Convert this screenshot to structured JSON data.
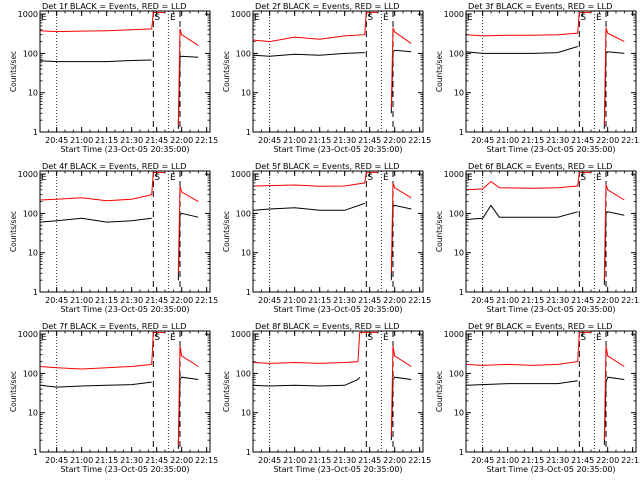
{
  "figure": {
    "ylabel": "Counts/sec",
    "xlabel": "Start Time (23-Oct-05 20:35:00)",
    "x_tick_labels": [
      "20:45",
      "21:00",
      "21:15",
      "21:30",
      "21:45",
      "22:00",
      "22:15"
    ],
    "y_tick_labels": [
      "1",
      "10",
      "100",
      "1000"
    ],
    "marker_S": "S",
    "marker_E": "E",
    "colors": {
      "events": "#000000",
      "lld": "#ff0000"
    }
  },
  "chart_data": [
    {
      "type": "line",
      "title": "Det 1f BLACK = Events, RED = LLD",
      "ylim": [
        1,
        1000
      ],
      "yscale": "log",
      "x": [
        "20:35",
        "20:45",
        "21:00",
        "21:15",
        "21:30",
        "21:42",
        "21:43",
        "21:50",
        "21:52",
        "21:53",
        "21:58",
        "21:59",
        "22:00",
        "22:10"
      ],
      "series": [
        {
          "name": "Events",
          "values": [
            65,
            62,
            62,
            62,
            66,
            68,
            null,
            null,
            null,
            null,
            1.2,
            80,
            85,
            80
          ]
        },
        {
          "name": "LLD",
          "values": [
            380,
            360,
            370,
            380,
            400,
            420,
            1100,
            1100,
            null,
            null,
            1.5,
            420,
            300,
            160
          ]
        }
      ],
      "vlines": {
        "dotted": [
          "20:45",
          "21:52"
        ],
        "dashed": [
          "21:43",
          "21:59"
        ]
      }
    },
    {
      "type": "line",
      "title": "Det 2f BLACK = Events, RED = LLD",
      "ylim": [
        1,
        1000
      ],
      "yscale": "log",
      "x": [
        "20:35",
        "20:45",
        "21:00",
        "21:15",
        "21:30",
        "21:42",
        "21:43",
        "21:50",
        "21:52",
        "21:53",
        "21:58",
        "21:59",
        "22:00",
        "22:10"
      ],
      "series": [
        {
          "name": "Events",
          "values": [
            90,
            85,
            95,
            90,
            100,
            105,
            null,
            null,
            null,
            null,
            3,
            110,
            120,
            110
          ]
        },
        {
          "name": "LLD",
          "values": [
            220,
            200,
            260,
            230,
            280,
            300,
            1100,
            1100,
            null,
            null,
            4,
            450,
            350,
            180
          ]
        }
      ],
      "vlines": {
        "dotted": [
          "20:45",
          "21:52"
        ],
        "dashed": [
          "21:43",
          "21:59"
        ]
      }
    },
    {
      "type": "line",
      "title": "Det 3f BLACK = Events, RED = LLD",
      "ylim": [
        1,
        1000
      ],
      "yscale": "log",
      "x": [
        "20:35",
        "20:45",
        "21:00",
        "21:15",
        "21:30",
        "21:42",
        "21:43",
        "21:50",
        "21:52",
        "21:53",
        "21:58",
        "21:59",
        "22:00",
        "22:10"
      ],
      "series": [
        {
          "name": "Events",
          "values": [
            110,
            100,
            100,
            100,
            105,
            150,
            null,
            null,
            null,
            null,
            1.2,
            100,
            110,
            100
          ]
        },
        {
          "name": "LLD",
          "values": [
            300,
            280,
            290,
            290,
            300,
            330,
            1100,
            1100,
            null,
            null,
            1.5,
            450,
            330,
            200
          ]
        }
      ],
      "vlines": {
        "dotted": [
          "20:45",
          "21:52"
        ],
        "dashed": [
          "21:43",
          "21:59"
        ]
      }
    },
    {
      "type": "line",
      "title": "Det 4f BLACK = Events, RED = LLD",
      "ylim": [
        1,
        1000
      ],
      "yscale": "log",
      "x": [
        "20:35",
        "20:45",
        "21:00",
        "21:15",
        "21:30",
        "21:42",
        "21:43",
        "21:50",
        "21:52",
        "21:53",
        "21:58",
        "21:59",
        "22:00",
        "22:10"
      ],
      "series": [
        {
          "name": "Events",
          "values": [
            60,
            65,
            75,
            60,
            65,
            75,
            null,
            null,
            null,
            null,
            2,
            90,
            100,
            80
          ]
        },
        {
          "name": "LLD",
          "values": [
            220,
            230,
            250,
            210,
            230,
            300,
            1100,
            1100,
            null,
            null,
            3,
            500,
            350,
            200
          ]
        }
      ],
      "vlines": {
        "dotted": [
          "20:45",
          "21:52"
        ],
        "dashed": [
          "21:43",
          "21:59"
        ]
      }
    },
    {
      "type": "line",
      "title": "Det 5f BLACK = Events, RED = LLD",
      "ylim": [
        1,
        1000
      ],
      "yscale": "log",
      "x": [
        "20:35",
        "20:45",
        "21:00",
        "21:15",
        "21:30",
        "21:42",
        "21:43",
        "21:50",
        "21:52",
        "21:53",
        "21:58",
        "21:59",
        "22:00",
        "22:10"
      ],
      "series": [
        {
          "name": "Events",
          "values": [
            120,
            130,
            140,
            120,
            120,
            180,
            null,
            null,
            null,
            null,
            2,
            150,
            160,
            130
          ]
        },
        {
          "name": "LLD",
          "values": [
            500,
            510,
            530,
            490,
            500,
            600,
            1100,
            1100,
            null,
            null,
            3,
            600,
            450,
            250
          ]
        }
      ],
      "vlines": {
        "dotted": [
          "20:45",
          "21:52"
        ],
        "dashed": [
          "21:43",
          "21:59"
        ]
      }
    },
    {
      "type": "line",
      "title": "Det 6f BLACK = Events, RED = LLD",
      "ylim": [
        1,
        1000
      ],
      "yscale": "log",
      "x": [
        "20:35",
        "20:45",
        "20:50",
        "20:55",
        "21:15",
        "21:30",
        "21:42",
        "21:43",
        "21:50",
        "21:52",
        "21:53",
        "21:58",
        "21:59",
        "22:00",
        "22:10"
      ],
      "series": [
        {
          "name": "Events",
          "values": [
            70,
            75,
            160,
            80,
            80,
            80,
            110,
            null,
            null,
            null,
            null,
            1.5,
            100,
            110,
            90
          ]
        },
        {
          "name": "LLD",
          "values": [
            400,
            420,
            650,
            450,
            440,
            450,
            500,
            1100,
            1100,
            null,
            null,
            2,
            550,
            400,
            220
          ]
        }
      ],
      "vlines": {
        "dotted": [
          "20:45",
          "21:52"
        ],
        "dashed": [
          "21:43",
          "21:59"
        ]
      }
    },
    {
      "type": "line",
      "title": "Det 7f BLACK = Events, RED = LLD",
      "ylim": [
        1,
        1000
      ],
      "yscale": "log",
      "x": [
        "20:35",
        "20:45",
        "21:00",
        "21:15",
        "21:30",
        "21:42",
        "21:43",
        "21:50",
        "21:52",
        "21:53",
        "21:58",
        "21:59",
        "22:00",
        "22:10"
      ],
      "series": [
        {
          "name": "Events",
          "values": [
            50,
            45,
            48,
            50,
            52,
            60,
            null,
            null,
            null,
            null,
            1.2,
            70,
            80,
            70
          ]
        },
        {
          "name": "LLD",
          "values": [
            150,
            140,
            130,
            140,
            150,
            170,
            1100,
            1100,
            null,
            null,
            1.5,
            500,
            280,
            150
          ]
        }
      ],
      "vlines": {
        "dotted": [
          "20:45",
          "21:52"
        ],
        "dashed": [
          "21:43",
          "21:59"
        ]
      }
    },
    {
      "type": "line",
      "title": "Det 8f BLACK = Events, RED = LLD",
      "ylim": [
        1,
        1000
      ],
      "yscale": "log",
      "x": [
        "20:35",
        "20:45",
        "21:00",
        "21:15",
        "21:30",
        "21:38",
        "21:39",
        "21:50",
        "21:52",
        "21:53",
        "21:58",
        "21:59",
        "22:00",
        "22:10"
      ],
      "series": [
        {
          "name": "Events",
          "values": [
            50,
            48,
            50,
            48,
            50,
            70,
            80,
            null,
            null,
            null,
            2,
            70,
            80,
            70
          ]
        },
        {
          "name": "LLD",
          "values": [
            190,
            180,
            190,
            180,
            190,
            200,
            1100,
            1100,
            null,
            null,
            2.5,
            500,
            280,
            150
          ]
        }
      ],
      "vlines": {
        "dotted": [
          "20:45",
          "21:52"
        ],
        "dashed": [
          "21:43",
          "21:59"
        ]
      }
    },
    {
      "type": "line",
      "title": "Det 9f BLACK = Events, RED = LLD",
      "ylim": [
        1,
        1000
      ],
      "yscale": "log",
      "x": [
        "20:35",
        "20:45",
        "21:00",
        "21:15",
        "21:30",
        "21:42",
        "21:43",
        "21:50",
        "21:52",
        "21:53",
        "21:58",
        "21:59",
        "22:00",
        "22:10"
      ],
      "series": [
        {
          "name": "Events",
          "values": [
            50,
            52,
            55,
            55,
            55,
            65,
            null,
            null,
            null,
            null,
            1.5,
            60,
            80,
            70
          ]
        },
        {
          "name": "LLD",
          "values": [
            170,
            160,
            170,
            160,
            170,
            200,
            1100,
            1100,
            null,
            null,
            2,
            500,
            280,
            150
          ]
        }
      ],
      "vlines": {
        "dotted": [
          "20:45",
          "21:52"
        ],
        "dashed": [
          "21:43",
          "21:59"
        ]
      }
    }
  ]
}
